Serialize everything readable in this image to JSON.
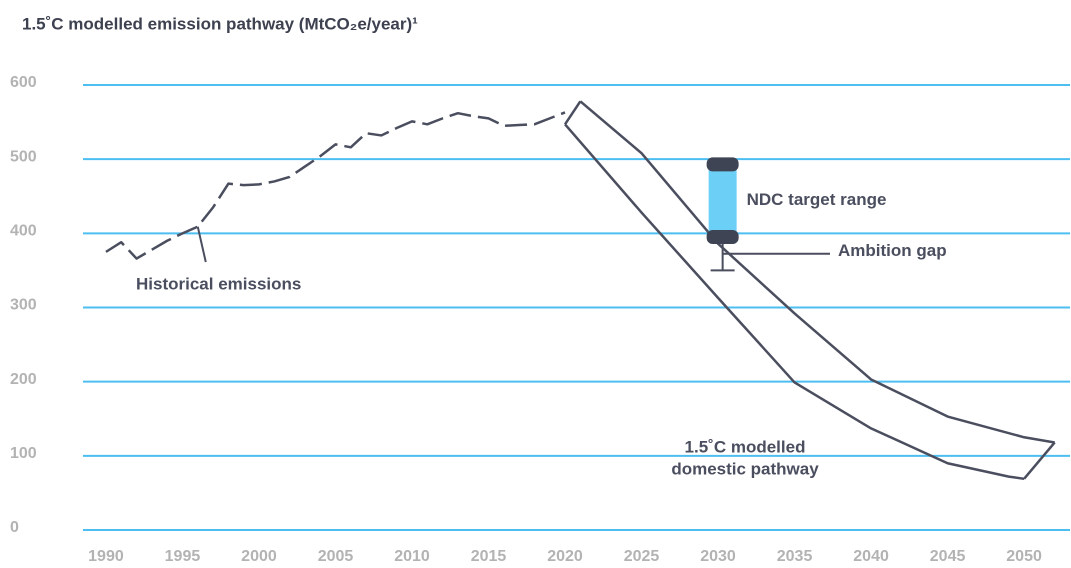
{
  "chart_data": {
    "type": "line",
    "title": "1.5˚C modelled emission pathway (MtCO₂e/year)¹",
    "xlim": [
      1988.5,
      2053
    ],
    "ylim": [
      0,
      600
    ],
    "xticks": [
      1990,
      1995,
      2000,
      2005,
      2010,
      2015,
      2020,
      2025,
      2030,
      2035,
      2040,
      2045,
      2050
    ],
    "yticks": [
      0,
      100,
      200,
      300,
      400,
      500,
      600
    ],
    "grid": true,
    "grid_color": "#4dbef0",
    "series": [
      {
        "name": "Historical emissions",
        "color": "#4a4e5e",
        "dashed": true,
        "x": [
          1990,
          1991,
          1992,
          1993,
          1994,
          1995,
          1996,
          1997,
          1998,
          1999,
          2000,
          2001,
          2002,
          2003,
          2004,
          2005,
          2006,
          2007,
          2008,
          2009,
          2010,
          2011,
          2012,
          2013,
          2014,
          2015,
          2016,
          2017,
          2018,
          2019,
          2020
        ],
        "values": [
          375,
          388,
          366,
          378,
          390,
          400,
          409,
          435,
          467,
          465,
          466,
          470,
          476,
          490,
          504,
          520,
          516,
          535,
          532,
          542,
          551,
          547,
          555,
          562,
          558,
          555,
          545,
          546,
          547,
          555,
          563
        ]
      }
    ],
    "pathway": {
      "lines": [
        "1.5˚C modelled",
        "domestic pathway"
      ],
      "color": "#4a4e5e",
      "high_x": [
        2021,
        2025,
        2030,
        2035,
        2040,
        2045,
        2050,
        2052
      ],
      "high": [
        578,
        508,
        386,
        292,
        203,
        153,
        125,
        118
      ],
      "low_x": [
        2020,
        2025,
        2030,
        2035,
        2040,
        2045,
        2049,
        2050
      ],
      "low": [
        547,
        428,
        313,
        199,
        137,
        90,
        72,
        69
      ]
    },
    "ndc": {
      "label": "NDC target range",
      "x": 2030.3,
      "low": 395,
      "high": 493,
      "color": "#6ccff6",
      "cap_color": "#3f4454"
    },
    "ambition_gap": {
      "label": "Ambition gap",
      "x": 2030.3,
      "low": 350,
      "high": 395
    }
  }
}
